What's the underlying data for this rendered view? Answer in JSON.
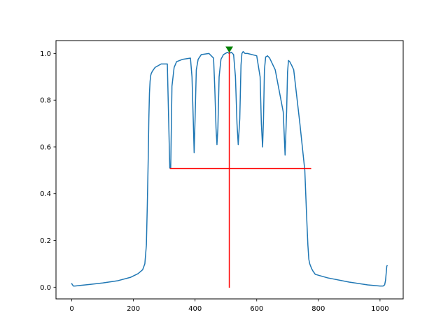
{
  "chart_data": {
    "type": "line",
    "title": "",
    "xlabel": "",
    "ylabel": "",
    "xlim": [
      -51.2,
      1075.2
    ],
    "ylim": [
      -0.05,
      1.055
    ],
    "x_ticks": [
      0,
      200,
      400,
      600,
      800,
      1000
    ],
    "x_tick_labels": [
      "0",
      "200",
      "400",
      "600",
      "800",
      "1000"
    ],
    "y_ticks": [
      0.0,
      0.2,
      0.4,
      0.6,
      0.8,
      1.0
    ],
    "y_tick_labels": [
      "0.0",
      "0.2",
      "0.4",
      "0.6",
      "0.8",
      "1.0"
    ],
    "grid": false,
    "legend": "none",
    "series": [
      {
        "color": "#1f77b4",
        "x": [
          0,
          5,
          10,
          30,
          60,
          100,
          150,
          190,
          215,
          230,
          237,
          242,
          245,
          248,
          250,
          252,
          254,
          256,
          258,
          262,
          270,
          290,
          310,
          318,
          321,
          325,
          332,
          340,
          360,
          385,
          390,
          394,
          397,
          400,
          404,
          410,
          420,
          445,
          460,
          464,
          468,
          471,
          474,
          478,
          484,
          492,
          505,
          511,
          518,
          525,
          531,
          536,
          540,
          545,
          549,
          552,
          556,
          562,
          570,
          600,
          611,
          615,
          619,
          622,
          625,
          629,
          635,
          642,
          660,
          686,
          692,
          697,
          700,
          703,
          707,
          713,
          720,
          740,
          756,
          762,
          766,
          769,
          772,
          775,
          778,
          782,
          790,
          830,
          900,
          960,
          1000,
          1010,
          1015,
          1018,
          1020,
          1022,
          1023
        ],
        "y": [
          0.015,
          0.005,
          0.005,
          0.008,
          0.012,
          0.018,
          0.028,
          0.042,
          0.058,
          0.075,
          0.1,
          0.18,
          0.35,
          0.55,
          0.72,
          0.83,
          0.88,
          0.905,
          0.915,
          0.925,
          0.94,
          0.955,
          0.955,
          0.51,
          0.51,
          0.86,
          0.94,
          0.965,
          0.975,
          0.98,
          0.9,
          0.72,
          0.575,
          0.72,
          0.93,
          0.975,
          0.995,
          1.0,
          0.98,
          0.85,
          0.68,
          0.61,
          0.68,
          0.9,
          0.975,
          0.995,
          1.005,
          1.0,
          1.005,
          0.995,
          0.9,
          0.7,
          0.61,
          0.72,
          0.95,
          1.0,
          1.008,
          1.0,
          1.0,
          0.99,
          0.9,
          0.7,
          0.6,
          0.72,
          0.93,
          0.985,
          0.99,
          0.98,
          0.93,
          0.75,
          0.565,
          0.75,
          0.92,
          0.97,
          0.965,
          0.95,
          0.93,
          0.7,
          0.5,
          0.3,
          0.18,
          0.12,
          0.1,
          0.09,
          0.08,
          0.07,
          0.055,
          0.04,
          0.022,
          0.01,
          0.005,
          0.005,
          0.01,
          0.03,
          0.06,
          0.09,
          0.092
        ]
      },
      {
        "color": "#ff0000",
        "x": [
          511,
          511
        ],
        "y": [
          0.0,
          1.005
        ]
      },
      {
        "color": "#ff0000",
        "x": [
          320,
          775
        ],
        "y": [
          0.508,
          0.508
        ]
      }
    ],
    "markers": [
      {
        "shape": "triangle-down",
        "color": "#008000",
        "x": 511,
        "y": 1.018
      }
    ]
  }
}
